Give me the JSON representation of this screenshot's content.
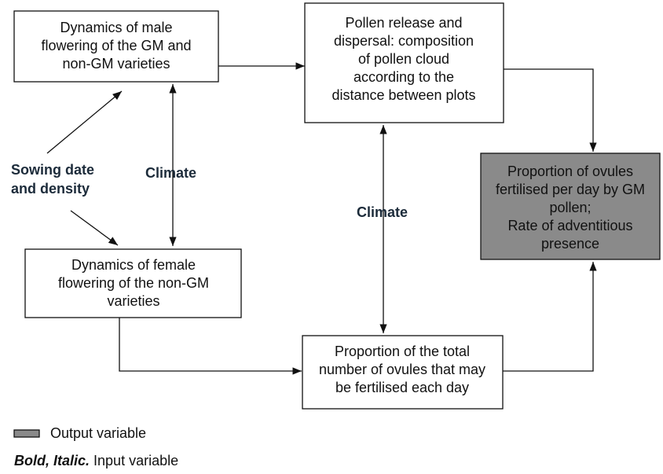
{
  "nodes": [
    {
      "lines": [
        "Dynamics of male",
        "flowering of the GM and",
        "non-GM varieties"
      ]
    },
    {
      "lines": [
        "Pollen release and",
        "dispersal: composition",
        "of pollen cloud",
        "according to the",
        "distance between plots"
      ]
    },
    {
      "lines": [
        "Proportion of ovules",
        "fertilised per day by GM",
        "pollen;",
        "Rate of adventitious",
        "presence"
      ]
    },
    {
      "lines": [
        "Dynamics of female",
        "flowering of the non-GM",
        "varieties"
      ]
    },
    {
      "lines": [
        "Proportion of the total",
        "number of ovules that may",
        "be fertilised each day"
      ]
    }
  ],
  "inputs": [
    {
      "lines": [
        "Sowing date",
        "and density"
      ]
    },
    {
      "lines": [
        "Climate"
      ]
    },
    {
      "lines": [
        "Climate"
      ]
    }
  ],
  "legend": {
    "output": "Output variable",
    "input_style": "Bold, Italic.",
    "input": "Input variable"
  }
}
